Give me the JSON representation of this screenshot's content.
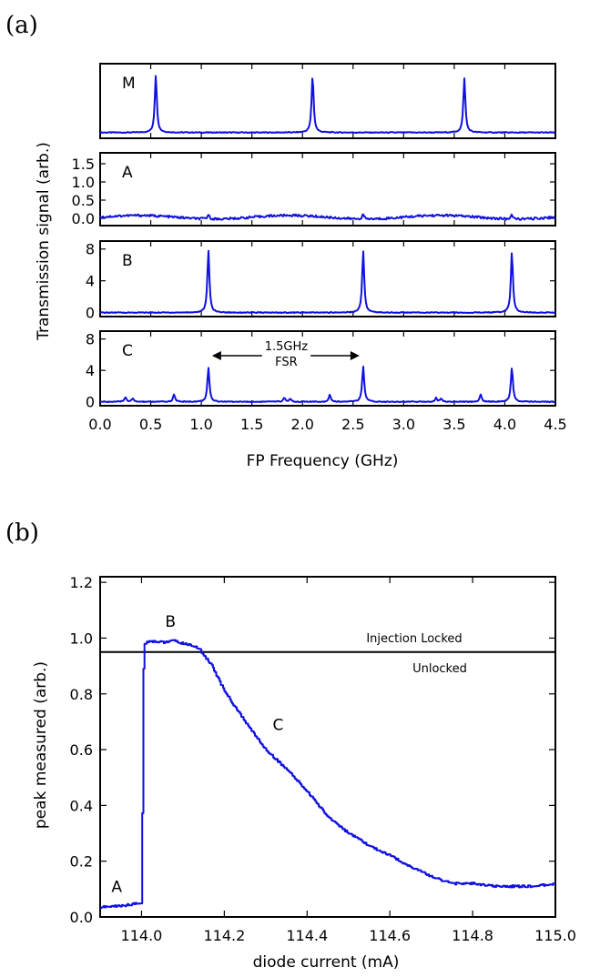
{
  "panel_a": {
    "figure_label": "(a)",
    "ylabel": "Transmission signal (arb.)",
    "xlabel": "FP Frequency (GHz)",
    "annotation_line1": "1.5GHz",
    "annotation_line2": "FSR",
    "x_tick_labels": [
      "0.0",
      "0.5",
      "1.0",
      "1.5",
      "2.0",
      "2.5",
      "3.0",
      "3.5",
      "4.0",
      "4.5"
    ],
    "subplots": [
      {
        "letter": "M",
        "ytick_labels": []
      },
      {
        "letter": "A",
        "ytick_labels": [
          "0.0",
          "0.5",
          "1.0",
          "1.5"
        ]
      },
      {
        "letter": "B",
        "ytick_labels": [
          "0",
          "4",
          "8"
        ]
      },
      {
        "letter": "C",
        "ytick_labels": [
          "0",
          "4",
          "8"
        ]
      }
    ]
  },
  "panel_b": {
    "figure_label": "(b)",
    "ylabel": "peak measured (arb.)",
    "xlabel": "diode current (mA)",
    "x_tick_labels": [
      "114.0",
      "114.2",
      "114.4",
      "114.6",
      "114.8",
      "115.0"
    ],
    "y_tick_labels": [
      "0.0",
      "0.2",
      "0.4",
      "0.6",
      "0.8",
      "1.0",
      "1.2"
    ],
    "threshold_label_above": "Injection Locked",
    "threshold_label_below": "Unlocked",
    "point_labels": [
      "A",
      "B",
      "C"
    ]
  },
  "chart_data": [
    {
      "type": "line",
      "title": "",
      "xlabel": "FP Frequency (GHz)",
      "ylabel": "Transmission signal (arb.)",
      "xlim": [
        0.0,
        4.5
      ],
      "series": [
        {
          "name": "M",
          "ylim": [
            -0.1,
            1.2
          ],
          "baseline": 0.0,
          "peaks": [
            {
              "x": 0.55,
              "height": 1.0
            },
            {
              "x": 2.1,
              "height": 1.0
            },
            {
              "x": 3.6,
              "height": 0.95
            }
          ]
        },
        {
          "name": "A",
          "ylim": [
            -0.2,
            1.8
          ],
          "baseline": 0.0,
          "peaks": [
            {
              "x": 1.07,
              "height": 0.12
            },
            {
              "x": 2.6,
              "height": 0.12
            },
            {
              "x": 4.07,
              "height": 0.1
            }
          ]
        },
        {
          "name": "B",
          "ylim": [
            -0.5,
            9.0
          ],
          "baseline": 0.0,
          "peaks": [
            {
              "x": 1.07,
              "height": 7.8
            },
            {
              "x": 2.6,
              "height": 7.8
            },
            {
              "x": 4.07,
              "height": 7.7
            }
          ]
        },
        {
          "name": "C",
          "ylim": [
            -0.5,
            9.0
          ],
          "baseline": 0.0,
          "peaks": [
            {
              "x": 0.25,
              "height": 0.6
            },
            {
              "x": 0.32,
              "height": 0.4
            },
            {
              "x": 0.73,
              "height": 0.9
            },
            {
              "x": 1.07,
              "height": 4.3
            },
            {
              "x": 1.82,
              "height": 0.5
            },
            {
              "x": 1.88,
              "height": 0.4
            },
            {
              "x": 2.27,
              "height": 0.9
            },
            {
              "x": 2.6,
              "height": 4.5
            },
            {
              "x": 3.32,
              "height": 0.5
            },
            {
              "x": 3.37,
              "height": 0.4
            },
            {
              "x": 3.76,
              "height": 0.9
            },
            {
              "x": 4.07,
              "height": 4.4
            }
          ]
        }
      ]
    },
    {
      "type": "line",
      "title": "",
      "xlabel": "diode current (mA)",
      "ylabel": "peak measured (arb.)",
      "xlim": [
        113.9,
        115.0
      ],
      "ylim": [
        0.0,
        1.22
      ],
      "threshold_y": 0.95,
      "series": [
        {
          "x": [
            113.9,
            113.95,
            114.0,
            114.005,
            114.02,
            114.05,
            114.08,
            114.1,
            114.12,
            114.14,
            114.17,
            114.2,
            114.25,
            114.3,
            114.35,
            114.4,
            114.45,
            114.5,
            114.55,
            114.6,
            114.65,
            114.7,
            114.75,
            114.8,
            114.85,
            114.9,
            114.95,
            115.0
          ],
          "y": [
            0.035,
            0.04,
            0.05,
            0.98,
            0.99,
            0.985,
            0.99,
            0.98,
            0.975,
            0.96,
            0.9,
            0.81,
            0.7,
            0.6,
            0.53,
            0.45,
            0.36,
            0.3,
            0.255,
            0.22,
            0.18,
            0.145,
            0.12,
            0.12,
            0.11,
            0.11,
            0.11,
            0.12
          ]
        }
      ],
      "annotations": [
        {
          "text": "A",
          "x": 113.94,
          "y": 0.09
        },
        {
          "text": "B",
          "x": 114.07,
          "y": 1.04
        },
        {
          "text": "C",
          "x": 114.33,
          "y": 0.67
        }
      ]
    }
  ]
}
